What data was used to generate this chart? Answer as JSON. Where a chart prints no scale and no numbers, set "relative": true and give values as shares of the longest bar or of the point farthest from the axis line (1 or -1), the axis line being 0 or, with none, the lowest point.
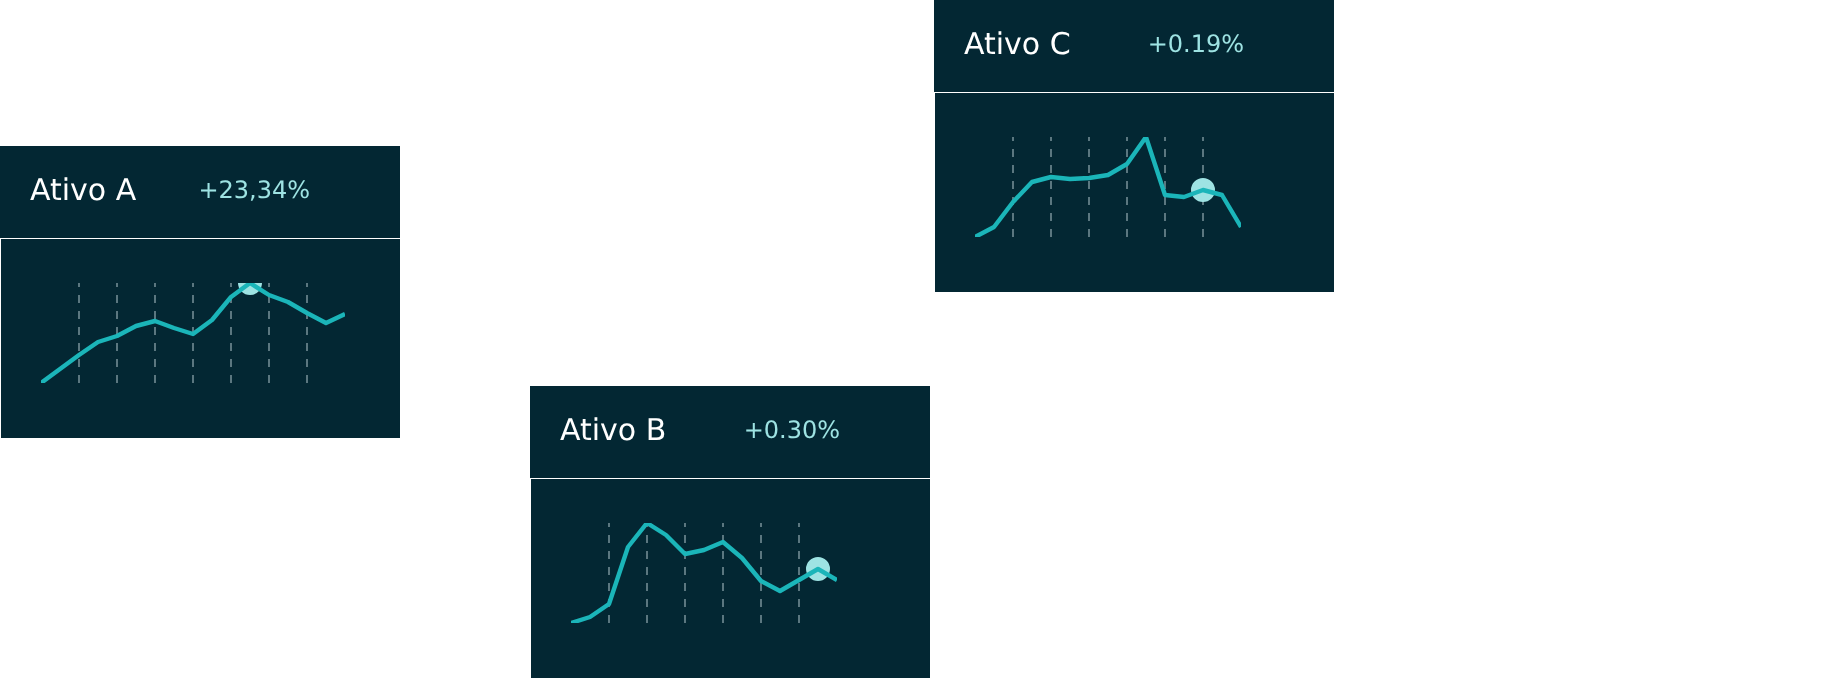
{
  "chart_data": [
    {
      "type": "line",
      "title": "Ativo A",
      "annotations": [
        "+23,34%"
      ],
      "relative": true,
      "tick_labels": false,
      "grid": "x",
      "categories": [
        null,
        null,
        null,
        null,
        null,
        null,
        null,
        null,
        null,
        null,
        null,
        null,
        null,
        null,
        null,
        null,
        null
      ],
      "series": [
        {
          "color": "#1bb5b9",
          "values": [
            0,
            0.14,
            0.28,
            0.41,
            0.47,
            0.57,
            0.62,
            0.55,
            0.49,
            0.63,
            0.86,
            1,
            0.88,
            0.81,
            0.7,
            0.6,
            0.69
          ]
        }
      ]
    },
    {
      "type": "line",
      "title": "Ativo B",
      "annotations": [
        "+0.30%"
      ],
      "relative": true,
      "tick_labels": false,
      "grid": "x",
      "categories": [
        null,
        null,
        null,
        null,
        null,
        null,
        null,
        null,
        null,
        null,
        null,
        null,
        null,
        null,
        null
      ],
      "series": [
        {
          "color": "#1bb5b9",
          "values": [
            0,
            0.06,
            0.19,
            0.76,
            1,
            0.88,
            0.69,
            0.73,
            0.81,
            0.65,
            0.42,
            0.32,
            0.43,
            0.54,
            0.43
          ]
        }
      ]
    },
    {
      "type": "line",
      "title": "Ativo C",
      "annotations": [
        "+0.19%"
      ],
      "relative": true,
      "tick_labels": false,
      "grid": "x",
      "categories": [
        null,
        null,
        null,
        null,
        null,
        null,
        null,
        null,
        null,
        null,
        null,
        null,
        null,
        null,
        null
      ],
      "series": [
        {
          "color": "#1bb5b9",
          "values": [
            0,
            0.1,
            0.35,
            0.55,
            0.6,
            0.58,
            0.59,
            0.62,
            0.73,
            1,
            0.42,
            0.4,
            0.47,
            0.42,
            0.1
          ]
        }
      ]
    }
  ]
}
